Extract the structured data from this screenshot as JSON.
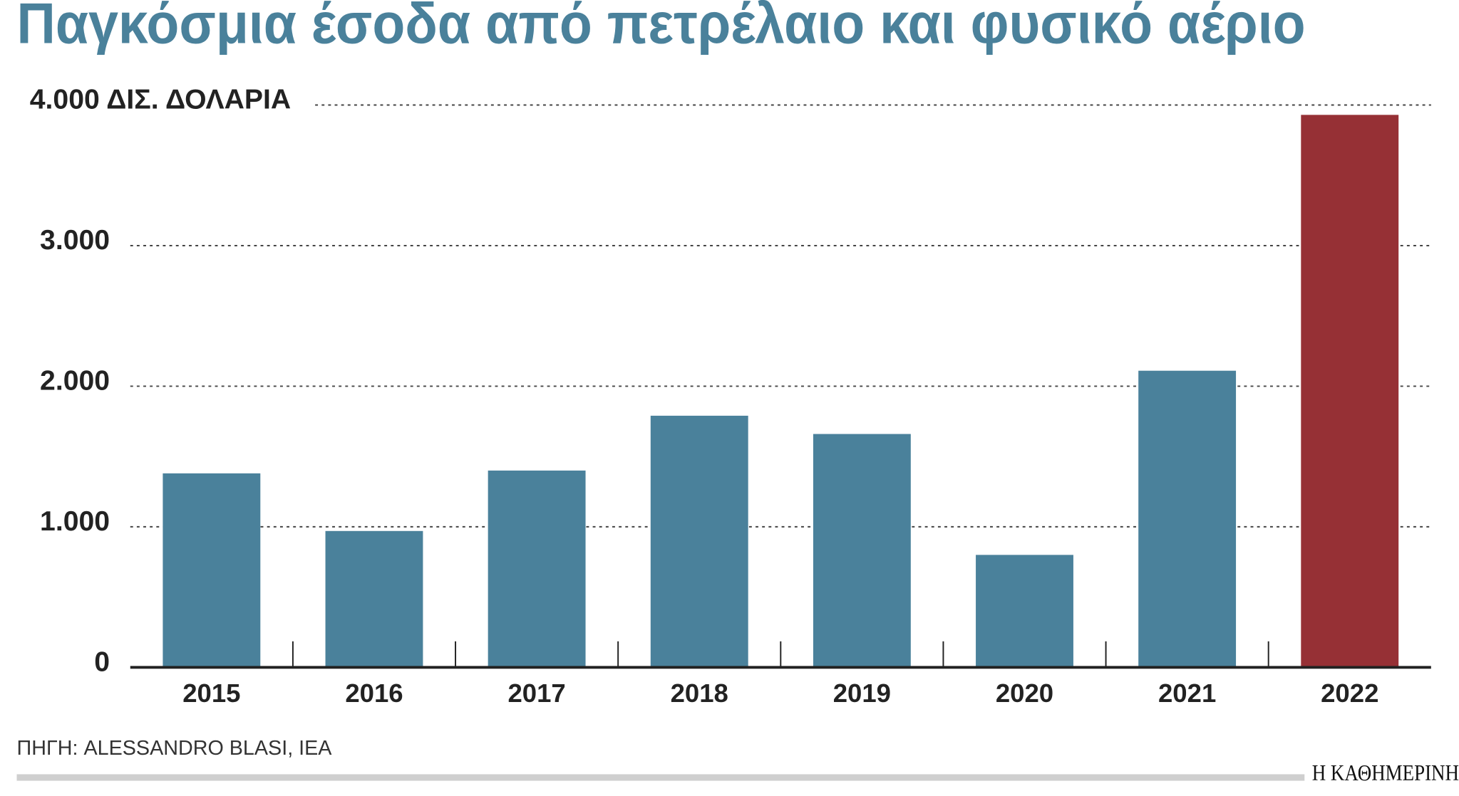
{
  "chart_data": {
    "type": "bar",
    "title": "Παγκόσμια έσοδα από πετρέλαιο και φυσικό αέριο",
    "categories": [
      "2015",
      "2016",
      "2017",
      "2018",
      "2019",
      "2020",
      "2021",
      "2022"
    ],
    "values": [
      1380,
      970,
      1400,
      1790,
      1660,
      800,
      2110,
      3930
    ],
    "colors": [
      "#4a819b",
      "#4a819b",
      "#4a819b",
      "#4a819b",
      "#4a819b",
      "#4a819b",
      "#4a819b",
      "#963035"
    ],
    "ylim": [
      0,
      4000
    ],
    "yticks": [
      0,
      {
        "value": 1000,
        "label": "1.000"
      },
      {
        "value": 2000,
        "label": "2.000"
      },
      {
        "value": 3000,
        "label": "3.000"
      },
      {
        "value": 4000,
        "label": "4.000 ΔΙΣ. ΔΟΛΑΡΙΑ"
      }
    ],
    "grid": true,
    "source": "ΠΗΓΗ: ALESSANDRO BLASI, IEA",
    "publisher": "Η ΚΑΘΗΜΕΡΙΝΗ"
  }
}
